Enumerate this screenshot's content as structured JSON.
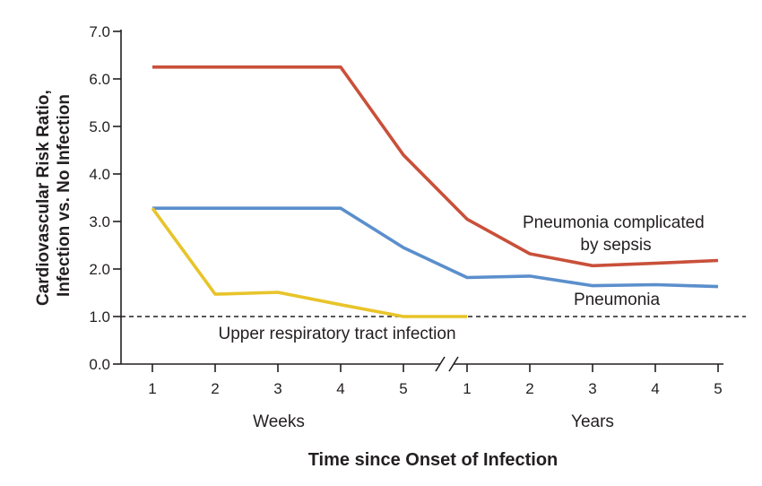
{
  "chart_data": {
    "type": "line",
    "ylabel_lines": [
      "Cardiovascular Risk Ratio,",
      "Infection vs. No Infection"
    ],
    "xlabel": "Time since Onset of Infection",
    "x_groups": [
      {
        "label": "Weeks",
        "ticks": [
          "1",
          "2",
          "3",
          "4",
          "5"
        ]
      },
      {
        "label": "Years",
        "ticks": [
          "1",
          "2",
          "3",
          "4",
          "5"
        ]
      }
    ],
    "ylim": [
      0,
      7
    ],
    "yticks": [
      "0.0",
      "1.0",
      "2.0",
      "3.0",
      "4.0",
      "5.0",
      "6.0",
      "7.0"
    ],
    "reference_line": {
      "y": 1.0,
      "style": "dashed"
    },
    "axis_break": "between week 5 and year 1",
    "series": [
      {
        "name": "Pneumonia complicated by sepsis",
        "label_lines": [
          "Pneumonia complicated",
          "by sepsis"
        ],
        "color": "#c9503a",
        "x": [
          "Week 1",
          "Week 2",
          "Week 3",
          "Week 4",
          "Week 5",
          "Year 1",
          "Year 2",
          "Year 3",
          "Year 4",
          "Year 5"
        ],
        "values": [
          6.25,
          6.25,
          6.25,
          6.25,
          4.4,
          3.05,
          2.32,
          2.07,
          2.12,
          2.18
        ]
      },
      {
        "name": "Pneumonia",
        "label_lines": [
          "Pneumonia"
        ],
        "color": "#5b8fcc",
        "x": [
          "Week 1",
          "Week 2",
          "Week 3",
          "Week 4",
          "Week 5",
          "Year 1",
          "Year 2",
          "Year 3",
          "Year 4",
          "Year 5"
        ],
        "values": [
          3.28,
          3.28,
          3.28,
          3.28,
          2.45,
          1.82,
          1.85,
          1.65,
          1.67,
          1.63
        ]
      },
      {
        "name": "Upper respiratory tract infection",
        "label_lines": [
          "Upper respiratory tract infection"
        ],
        "color": "#e8c42a",
        "x": [
          "Week 1",
          "Week 2",
          "Week 3",
          "Week 4",
          "Week 5",
          "Year 1"
        ],
        "values": [
          3.28,
          1.47,
          1.51,
          1.25,
          1.0,
          1.0
        ]
      }
    ]
  }
}
